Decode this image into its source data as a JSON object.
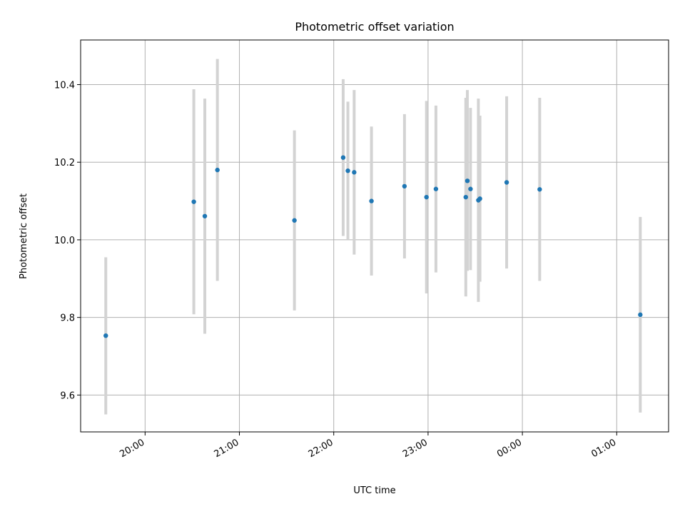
{
  "chart_data": {
    "type": "scatter",
    "title": "Photometric offset variation",
    "xlabel": "UTC time",
    "ylabel": "Photometric offset",
    "grid": true,
    "xlim": [
      "19:19",
      "01:33"
    ],
    "ylim": [
      9.505,
      10.515
    ],
    "x_ticks": [
      "20:00",
      "21:00",
      "22:00",
      "23:00",
      "00:00",
      "01:00"
    ],
    "y_ticks": [
      "9.6",
      "9.8",
      "10.0",
      "10.2",
      "10.4"
    ],
    "colors": {
      "points": "#1f77b4",
      "error_bars": "#d3d3d3"
    },
    "points": [
      {
        "time": "19:35",
        "y": 9.753,
        "err_low": 9.55,
        "err_high": 9.955
      },
      {
        "time": "20:31",
        "y": 10.098,
        "err_low": 9.808,
        "err_high": 10.388
      },
      {
        "time": "20:38",
        "y": 10.061,
        "err_low": 9.758,
        "err_high": 10.364
      },
      {
        "time": "20:46",
        "y": 10.18,
        "err_low": 9.894,
        "err_high": 10.466
      },
      {
        "time": "21:35",
        "y": 10.05,
        "err_low": 9.818,
        "err_high": 10.282
      },
      {
        "time": "22:06",
        "y": 10.212,
        "err_low": 10.01,
        "err_high": 10.414
      },
      {
        "time": "22:09",
        "y": 10.178,
        "err_low": 10.0,
        "err_high": 10.356
      },
      {
        "time": "22:13",
        "y": 10.174,
        "err_low": 9.962,
        "err_high": 10.386
      },
      {
        "time": "22:24",
        "y": 10.1,
        "err_low": 9.908,
        "err_high": 10.292
      },
      {
        "time": "22:45",
        "y": 10.138,
        "err_low": 9.952,
        "err_high": 10.324
      },
      {
        "time": "22:59",
        "y": 10.11,
        "err_low": 9.862,
        "err_high": 10.358
      },
      {
        "time": "23:05",
        "y": 10.131,
        "err_low": 9.916,
        "err_high": 10.346
      },
      {
        "time": "23:24",
        "y": 10.11,
        "err_low": 9.854,
        "err_high": 10.366
      },
      {
        "time": "23:25",
        "y": 10.152,
        "err_low": 9.92,
        "err_high": 10.386
      },
      {
        "time": "23:27",
        "y": 10.131,
        "err_low": 9.922,
        "err_high": 10.34
      },
      {
        "time": "23:32",
        "y": 10.102,
        "err_low": 9.84,
        "err_high": 10.364
      },
      {
        "time": "23:33",
        "y": 10.106,
        "err_low": 9.892,
        "err_high": 10.32
      },
      {
        "time": "23:50",
        "y": 10.148,
        "err_low": 9.926,
        "err_high": 10.37
      },
      {
        "time": "00:11",
        "y": 10.13,
        "err_low": 9.894,
        "err_high": 10.366
      },
      {
        "time": "01:15",
        "y": 9.807,
        "err_low": 9.555,
        "err_high": 10.059
      }
    ]
  }
}
